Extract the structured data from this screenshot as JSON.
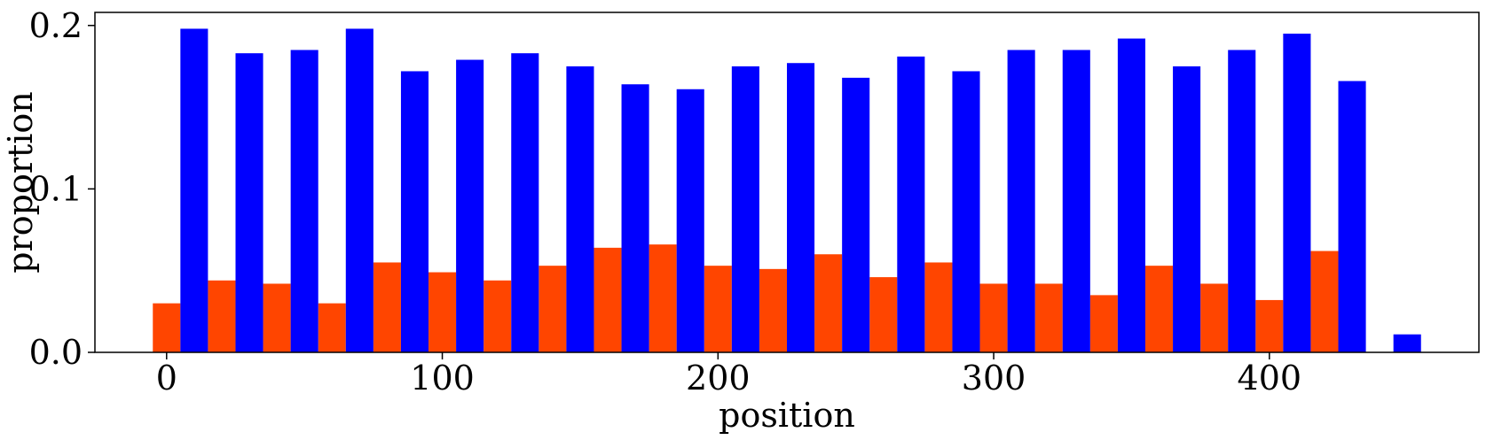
{
  "chart_data": {
    "type": "bar",
    "xlabel": "position",
    "ylabel": "proportion",
    "xlim": [
      -26,
      476
    ],
    "ylim": [
      0,
      0.208
    ],
    "xticks": [
      0,
      100,
      200,
      300,
      400
    ],
    "xtick_labels": [
      "0",
      "100",
      "200",
      "300",
      "400"
    ],
    "yticks": [
      0.0,
      0.1,
      0.2
    ],
    "ytick_labels": [
      "0.0",
      "0.1",
      "0.2"
    ],
    "bin_width": 10,
    "grid": false,
    "series": [
      {
        "color": "#ff4500",
        "x": [
          0,
          20,
          40,
          60,
          80,
          100,
          120,
          140,
          160,
          180,
          200,
          220,
          240,
          260,
          280,
          300,
          320,
          340,
          360,
          380,
          400,
          420
        ],
        "values": [
          0.03,
          0.044,
          0.042,
          0.03,
          0.055,
          0.049,
          0.044,
          0.053,
          0.064,
          0.066,
          0.053,
          0.051,
          0.06,
          0.046,
          0.055,
          0.042,
          0.042,
          0.035,
          0.053,
          0.042,
          0.032,
          0.062
        ]
      },
      {
        "color": "#0000ff",
        "x": [
          10,
          30,
          50,
          70,
          90,
          110,
          130,
          150,
          170,
          190,
          210,
          230,
          250,
          270,
          290,
          310,
          330,
          350,
          370,
          390,
          410,
          430,
          450
        ],
        "values": [
          0.198,
          0.183,
          0.185,
          0.198,
          0.172,
          0.179,
          0.183,
          0.175,
          0.164,
          0.161,
          0.175,
          0.177,
          0.168,
          0.181,
          0.172,
          0.185,
          0.185,
          0.192,
          0.175,
          0.185,
          0.195,
          0.166,
          0.011
        ]
      }
    ]
  }
}
